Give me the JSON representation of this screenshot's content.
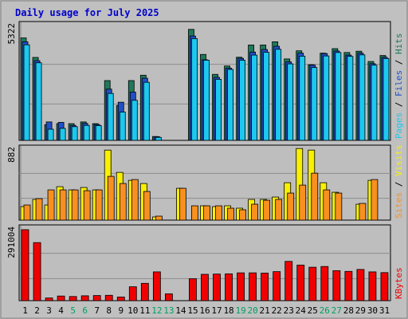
{
  "title": "Daily usage for July 2025",
  "colors": {
    "background": "#c0c0c0",
    "plot_bg": "#bebebe",
    "title": "#0000cc",
    "hits": "#1c7a5a",
    "files": "#2050c8",
    "pages": "#1cc8f0",
    "visits": "#f8f000",
    "sites": "#f89020",
    "kbytes": "#f00000",
    "weekend": "#00a060",
    "weekday": "#000000"
  },
  "chart_data": [
    {
      "type": "bar",
      "title": "Daily usage for July 2025",
      "panel": "hits-files-pages",
      "ymax_label": "5322",
      "ylim": [
        0,
        5322
      ],
      "right_label_parts": [
        "Pages",
        "Files",
        "Hits"
      ],
      "series": [
        {
          "name": "Hits",
          "values": [
            4780,
            3870,
            730,
            780,
            780,
            860,
            780,
            2790,
            1630,
            2790,
            3040,
            180,
            0,
            0,
            5180,
            4010,
            3080,
            3470,
            3880,
            4450,
            4450,
            4600,
            3800,
            4180,
            3530,
            4070,
            0,
            0,
            0,
            0,
            0
          ]
        },
        {
          "name": "Files",
          "values": [
            4600,
            3720,
            860,
            840,
            700,
            790,
            740,
            2390,
            1780,
            2250,
            2900,
            170,
            0,
            0,
            4870,
            3760,
            2940,
            3370,
            3830,
            4120,
            4240,
            4390,
            3660,
            4070,
            3510,
            4050,
            0,
            0,
            0,
            0,
            0
          ]
        },
        {
          "name": "Pages",
          "values": [
            4460,
            3620,
            520,
            560,
            640,
            700,
            690,
            2190,
            1320,
            1870,
            2710,
            140,
            0,
            0,
            4750,
            3740,
            2850,
            3310,
            3740,
            3980,
            4110,
            4250,
            3570,
            3930,
            3400,
            3940,
            0,
            0,
            0,
            0,
            0
          ]
        }
      ],
      "hits_tail": [
        4280,
        4100,
        4160,
        3680,
        3960
      ]
    },
    {
      "type": "bar",
      "panel": "visits-sites",
      "ymax_label": "882",
      "ylim": [
        0,
        882
      ],
      "right_label_parts": [
        "Sites",
        "Visits"
      ],
      "series": [
        {
          "name": "Visits",
          "values": [
            170,
            260,
            190,
            420,
            380,
            410,
            380,
            880,
            600,
            500,
            460,
            40,
            0,
            400,
            0,
            180,
            170,
            180,
            150,
            260,
            260,
            290,
            470,
            900,
            880,
            470,
            350,
            0,
            200,
            500,
            0
          ]
        },
        {
          "name": "Sites",
          "values": [
            190,
            270,
            380,
            380,
            380,
            370,
            380,
            550,
            460,
            510,
            360,
            50,
            0,
            400,
            180,
            180,
            180,
            150,
            130,
            200,
            250,
            260,
            340,
            440,
            590,
            380,
            340,
            0,
            210,
            510,
            0
          ]
        }
      ],
      "tail_override": {
        "Visits": [
          null,
          null,
          null,
          0,
          180,
          500,
          0
        ],
        "Sites": [
          null,
          null,
          null,
          0,
          210,
          510,
          0
        ]
      }
    },
    {
      "type": "bar",
      "panel": "kbytes",
      "ymax_label": "291004",
      "ylim": [
        0,
        291004
      ],
      "right_label_parts": [
        "KBytes"
      ],
      "series": [
        {
          "name": "KBytes",
          "values": [
            291004,
            238000,
            11000,
            19000,
            17000,
            20000,
            21000,
            22000,
            15000,
            57000,
            71000,
            118000,
            28000,
            0,
            90000,
            108000,
            109000,
            110000,
            114000,
            114000,
            113000,
            119000,
            161000,
            146000,
            137000,
            140000,
            123000,
            120000,
            128000,
            118000,
            115000
          ]
        }
      ]
    }
  ],
  "x_labels": [
    "1",
    "2",
    "3",
    "4",
    "5",
    "6",
    "7",
    "8",
    "9",
    "10",
    "11",
    "12",
    "13",
    "14",
    "15",
    "16",
    "17",
    "18",
    "19",
    "20",
    "21",
    "22",
    "23",
    "24",
    "25",
    "26",
    "27",
    "28",
    "29",
    "30",
    "31"
  ],
  "weekend_days": [
    5,
    6,
    12,
    13,
    19,
    20,
    26,
    27
  ]
}
